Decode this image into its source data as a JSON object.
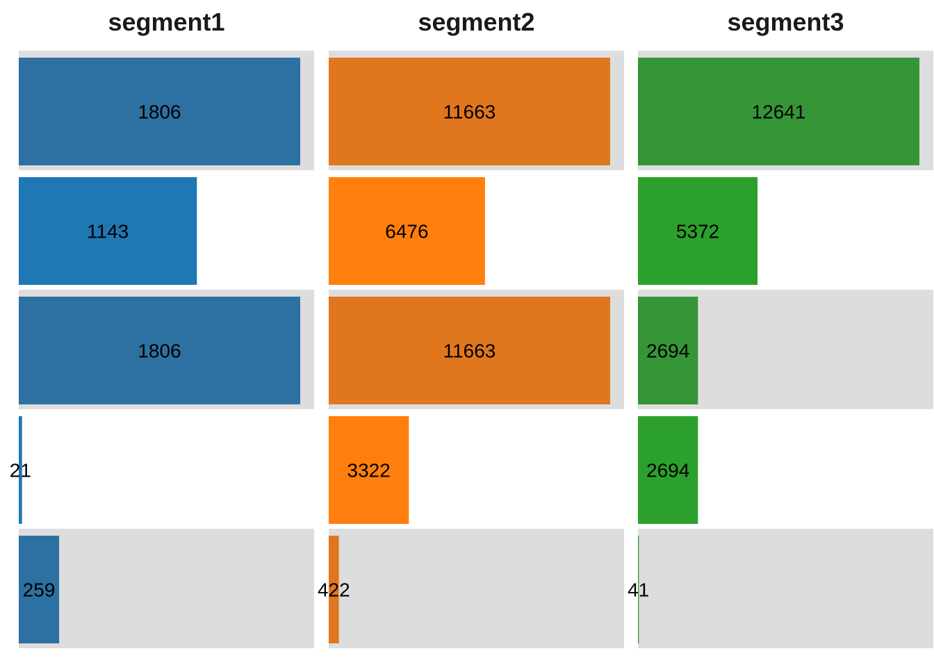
{
  "chart_data": {
    "type": "bar",
    "orientation": "horizontal",
    "layout": "small-multiples",
    "rows": 5,
    "row_band_colors": {
      "odd": "#dddddd",
      "even": "#ffffff"
    },
    "panels": [
      {
        "title": "segment1",
        "colors": {
          "dark": "#2c71a1",
          "light": "#1f77b4"
        },
        "max": 1806,
        "values": [
          1806,
          1143,
          1806,
          21,
          259
        ],
        "labels": [
          "1806",
          "1143",
          "1806",
          "21",
          "259"
        ]
      },
      {
        "title": "segment2",
        "colors": {
          "dark": "#e0771f",
          "light": "#ff7f0e"
        },
        "max": 11663,
        "values": [
          11663,
          6476,
          11663,
          3322,
          422
        ],
        "labels": [
          "11663",
          "6476",
          "11663",
          "3322",
          "422"
        ]
      },
      {
        "title": "segment3",
        "colors": {
          "dark": "#359537",
          "light": "#2ca02c"
        },
        "max": 12641,
        "values": [
          12641,
          5372,
          2694,
          2694,
          41
        ],
        "labels": [
          "12641",
          "5372",
          "2694",
          "2694",
          "41"
        ]
      }
    ]
  }
}
